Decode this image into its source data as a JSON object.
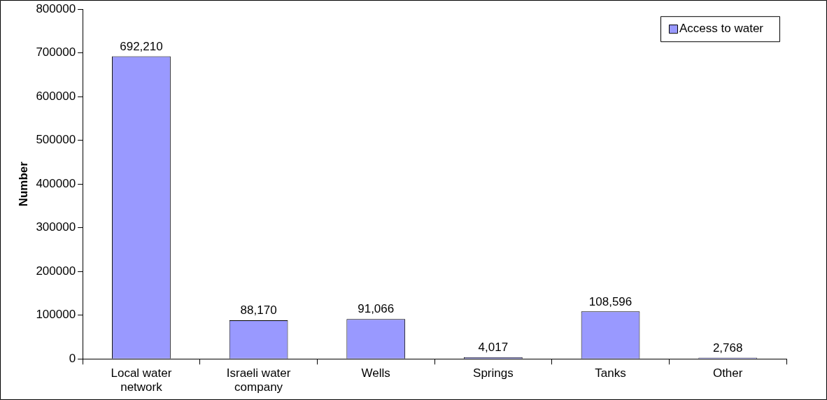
{
  "chart_data": {
    "type": "bar",
    "ylabel": "Number",
    "categories": [
      "Local water network",
      "Israeli water company",
      "Wells",
      "Springs",
      "Tanks",
      "Other"
    ],
    "series": [
      {
        "name": "Access to water",
        "color": "#9999ff",
        "values": [
          692210,
          88170,
          91066,
          4017,
          108596,
          2768
        ],
        "value_labels": [
          "692,210",
          "88,170",
          "91,066",
          "4,017",
          "108,596",
          "2,768"
        ]
      }
    ],
    "ylim": [
      0,
      800000
    ],
    "yticks": [
      0,
      100000,
      200000,
      300000,
      400000,
      500000,
      600000,
      700000,
      800000
    ],
    "grid": false,
    "legend": "top right"
  }
}
